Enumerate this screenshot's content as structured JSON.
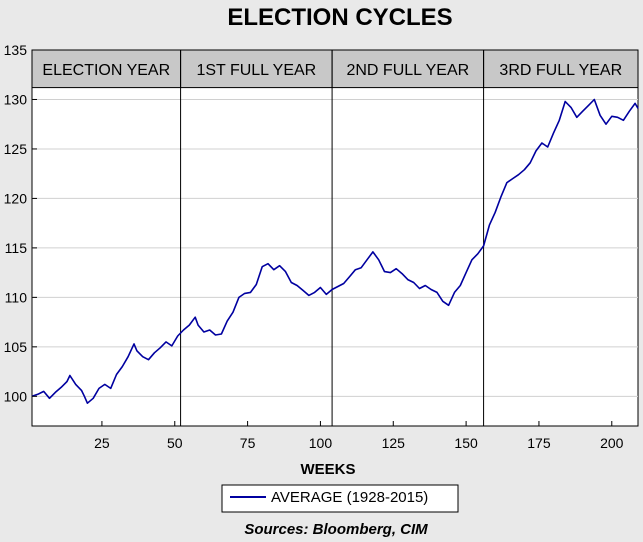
{
  "chart_data": {
    "type": "line",
    "title": "ELECTION CYCLES",
    "xlabel": "WEEKS",
    "ylabel": "",
    "xlim": [
      1,
      209
    ],
    "ylim": [
      97,
      135
    ],
    "xticks": [
      25,
      50,
      75,
      100,
      125,
      150,
      175,
      200
    ],
    "yticks": [
      100,
      105,
      110,
      115,
      120,
      125,
      130,
      135
    ],
    "grid": true,
    "legend_position": "bottom-center",
    "source": "Sources:  Bloomberg, CIM",
    "line_color": "#0000a0",
    "bands": [
      {
        "label": "ELECTION YEAR",
        "start": 1,
        "end": 52
      },
      {
        "label": "1ST FULL YEAR",
        "start": 52,
        "end": 104
      },
      {
        "label": "2ND FULL YEAR",
        "start": 104,
        "end": 156
      },
      {
        "label": "3RD FULL YEAR",
        "start": 156,
        "end": 209
      }
    ],
    "dividers": [
      52,
      104,
      156
    ],
    "series": [
      {
        "name": "AVERAGE (1928-2015)",
        "points": [
          [
            1,
            100.0
          ],
          [
            3,
            100.2
          ],
          [
            5,
            100.5
          ],
          [
            7,
            99.8
          ],
          [
            9,
            100.4
          ],
          [
            11,
            100.9
          ],
          [
            13,
            101.5
          ],
          [
            14,
            102.1
          ],
          [
            16,
            101.2
          ],
          [
            18,
            100.6
          ],
          [
            19,
            100.0
          ],
          [
            20,
            99.3
          ],
          [
            22,
            99.8
          ],
          [
            24,
            100.8
          ],
          [
            26,
            101.2
          ],
          [
            28,
            100.8
          ],
          [
            30,
            102.2
          ],
          [
            32,
            103.0
          ],
          [
            34,
            104.0
          ],
          [
            36,
            105.3
          ],
          [
            37,
            104.6
          ],
          [
            39,
            104.0
          ],
          [
            41,
            103.7
          ],
          [
            43,
            104.4
          ],
          [
            45,
            104.9
          ],
          [
            47,
            105.5
          ],
          [
            49,
            105.1
          ],
          [
            51,
            106.1
          ],
          [
            53,
            106.7
          ],
          [
            55,
            107.2
          ],
          [
            57,
            108.0
          ],
          [
            58,
            107.2
          ],
          [
            60,
            106.5
          ],
          [
            62,
            106.7
          ],
          [
            64,
            106.2
          ],
          [
            66,
            106.3
          ],
          [
            68,
            107.6
          ],
          [
            70,
            108.5
          ],
          [
            72,
            110.0
          ],
          [
            74,
            110.4
          ],
          [
            76,
            110.5
          ],
          [
            78,
            111.3
          ],
          [
            80,
            113.1
          ],
          [
            82,
            113.4
          ],
          [
            84,
            112.8
          ],
          [
            86,
            113.2
          ],
          [
            88,
            112.6
          ],
          [
            90,
            111.5
          ],
          [
            92,
            111.2
          ],
          [
            94,
            110.7
          ],
          [
            96,
            110.2
          ],
          [
            98,
            110.5
          ],
          [
            100,
            111.0
          ],
          [
            102,
            110.3
          ],
          [
            104,
            110.8
          ],
          [
            106,
            111.1
          ],
          [
            108,
            111.4
          ],
          [
            110,
            112.1
          ],
          [
            112,
            112.8
          ],
          [
            114,
            113.0
          ],
          [
            116,
            113.8
          ],
          [
            118,
            114.6
          ],
          [
            120,
            113.8
          ],
          [
            122,
            112.6
          ],
          [
            124,
            112.5
          ],
          [
            126,
            112.9
          ],
          [
            128,
            112.4
          ],
          [
            130,
            111.8
          ],
          [
            132,
            111.5
          ],
          [
            134,
            110.9
          ],
          [
            136,
            111.2
          ],
          [
            138,
            110.8
          ],
          [
            140,
            110.5
          ],
          [
            142,
            109.6
          ],
          [
            144,
            109.2
          ],
          [
            146,
            110.5
          ],
          [
            148,
            111.2
          ],
          [
            150,
            112.5
          ],
          [
            152,
            113.8
          ],
          [
            154,
            114.4
          ],
          [
            156,
            115.2
          ],
          [
            158,
            117.3
          ],
          [
            160,
            118.6
          ],
          [
            162,
            120.2
          ],
          [
            164,
            121.6
          ],
          [
            166,
            122.0
          ],
          [
            168,
            122.4
          ],
          [
            170,
            122.9
          ],
          [
            172,
            123.6
          ],
          [
            174,
            124.8
          ],
          [
            176,
            125.6
          ],
          [
            178,
            125.2
          ],
          [
            180,
            126.6
          ],
          [
            182,
            127.9
          ],
          [
            184,
            129.8
          ],
          [
            186,
            129.2
          ],
          [
            188,
            128.2
          ],
          [
            190,
            128.8
          ],
          [
            192,
            129.4
          ],
          [
            194,
            130.0
          ],
          [
            196,
            128.4
          ],
          [
            198,
            127.5
          ],
          [
            200,
            128.3
          ],
          [
            202,
            128.2
          ],
          [
            204,
            127.9
          ],
          [
            206,
            128.8
          ],
          [
            208,
            129.6
          ],
          [
            209,
            129.1
          ]
        ]
      }
    ]
  }
}
